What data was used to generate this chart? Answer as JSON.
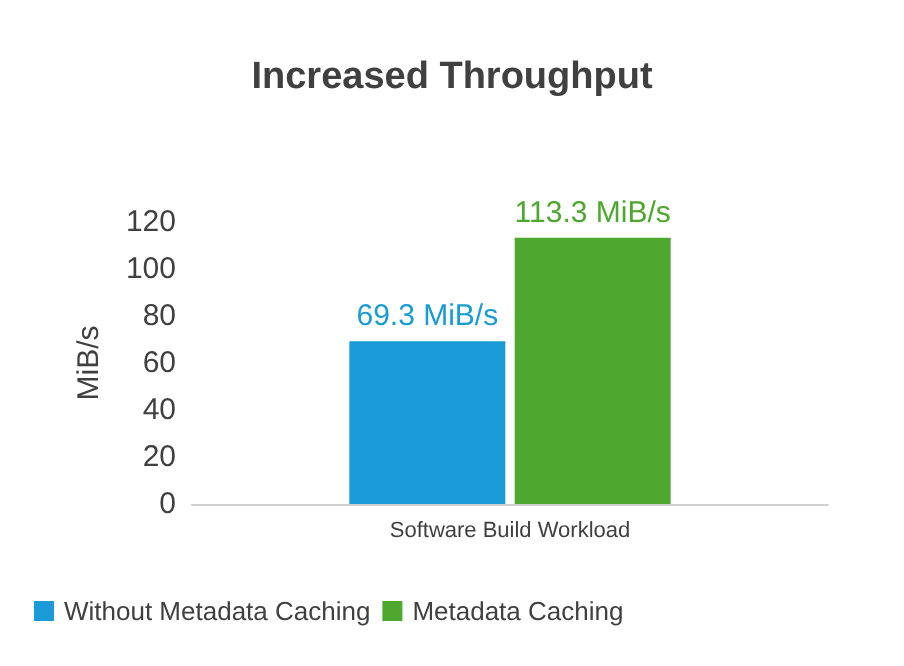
{
  "chart_data": {
    "type": "bar",
    "title": "Increased Throughput",
    "ylabel": "MiB/s",
    "categories": [
      "Software Build Workload"
    ],
    "series": [
      {
        "name": "Without Metadata Caching",
        "color": "#1a9ad6",
        "values": [
          69.3
        ],
        "value_labels": [
          "69.3 MiB/s"
        ]
      },
      {
        "name": "Metadata Caching",
        "color": "#4ea72e",
        "values": [
          113.3
        ],
        "value_labels": [
          "113.3 MiB/s"
        ]
      }
    ],
    "ylim": [
      0,
      120
    ],
    "yticks": [
      0,
      20,
      40,
      60,
      80,
      100,
      120
    ],
    "grid": false,
    "legend": "bottom left"
  }
}
